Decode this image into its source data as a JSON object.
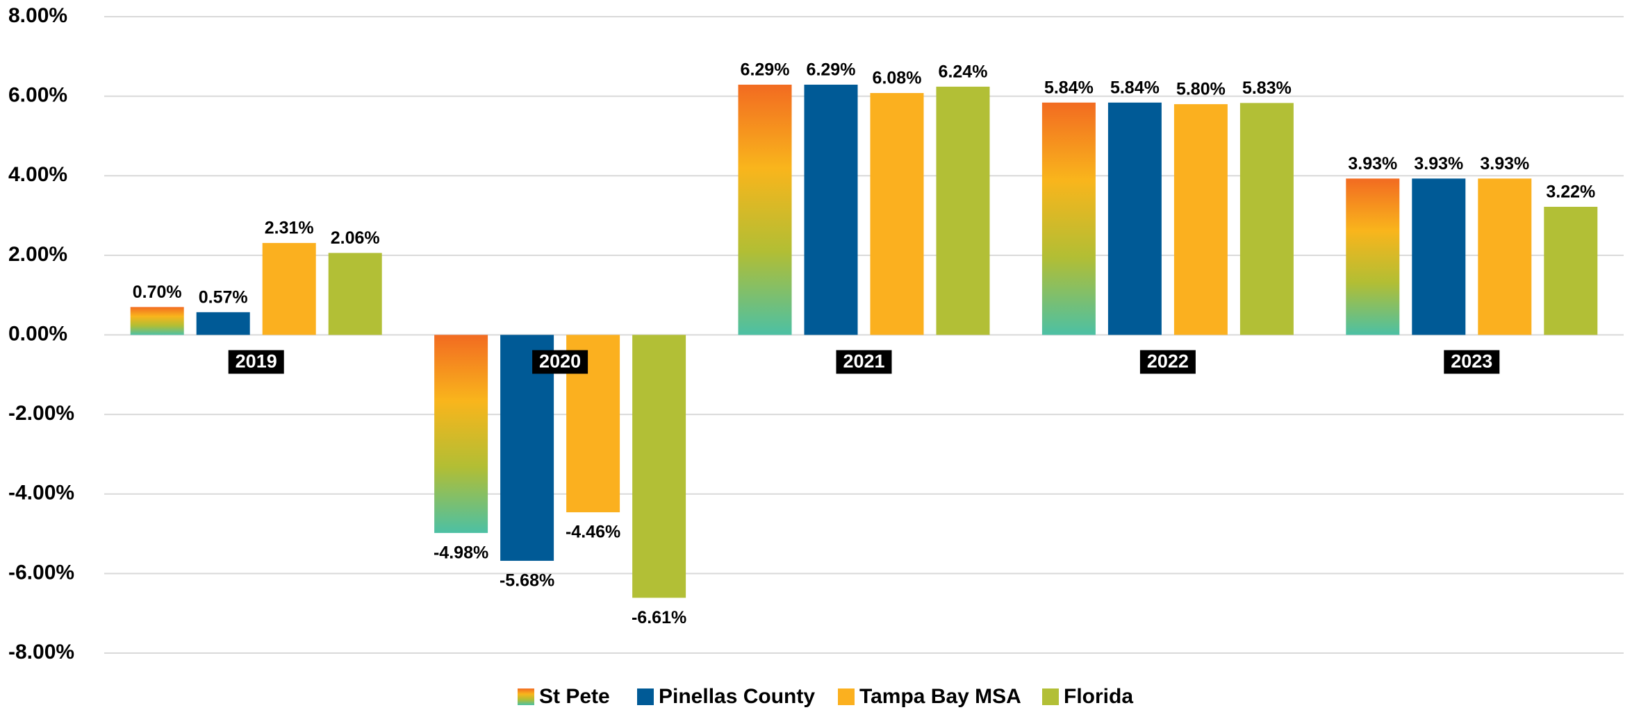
{
  "chart_data": {
    "type": "bar",
    "categories": [
      "2019",
      "2020",
      "2021",
      "2022",
      "2023"
    ],
    "series": [
      {
        "name": "St Pete",
        "color": "#f26b21",
        "gradient": [
          "#f26b21",
          "#f9b51c",
          "#b2be34",
          "#4cc0a4"
        ],
        "values": [
          0.7,
          -4.98,
          6.29,
          5.84,
          3.93
        ],
        "value_labels": [
          "0.70%",
          "-4.98%",
          "6.29%",
          "5.84%",
          "3.93%"
        ]
      },
      {
        "name": "Pinellas County",
        "color": "#005a96",
        "values": [
          0.57,
          -5.68,
          6.29,
          5.84,
          3.93
        ],
        "value_labels": [
          "0.57%",
          "-5.68%",
          "6.29%",
          "5.84%",
          "3.93%"
        ]
      },
      {
        "name": "Tampa Bay MSA",
        "color": "#fbb01f",
        "values": [
          2.31,
          -4.46,
          6.08,
          5.8,
          3.93
        ],
        "value_labels": [
          "2.31%",
          "-4.46%",
          "6.08%",
          "5.80%",
          "3.93%"
        ]
      },
      {
        "name": "Florida",
        "color": "#b2bf36",
        "values": [
          2.06,
          -6.61,
          6.24,
          5.83,
          3.22
        ],
        "value_labels": [
          "2.06%",
          "-6.61%",
          "6.24%",
          "5.83%",
          "3.22%"
        ]
      }
    ],
    "ylim": [
      -8,
      8
    ],
    "yticks": [
      {
        "value": -8,
        "label": "-8.00%"
      },
      {
        "value": -6,
        "label": "-6.00%"
      },
      {
        "value": -4,
        "label": "-4.00%"
      },
      {
        "value": -2,
        "label": "-2.00%"
      },
      {
        "value": 0,
        "label": "0.00%"
      },
      {
        "value": 2,
        "label": "2.00%"
      },
      {
        "value": 4,
        "label": "4.00%"
      },
      {
        "value": 6,
        "label": "6.00%"
      },
      {
        "value": 8,
        "label": "8.00%"
      }
    ],
    "grid": true,
    "legend": "bottom"
  }
}
